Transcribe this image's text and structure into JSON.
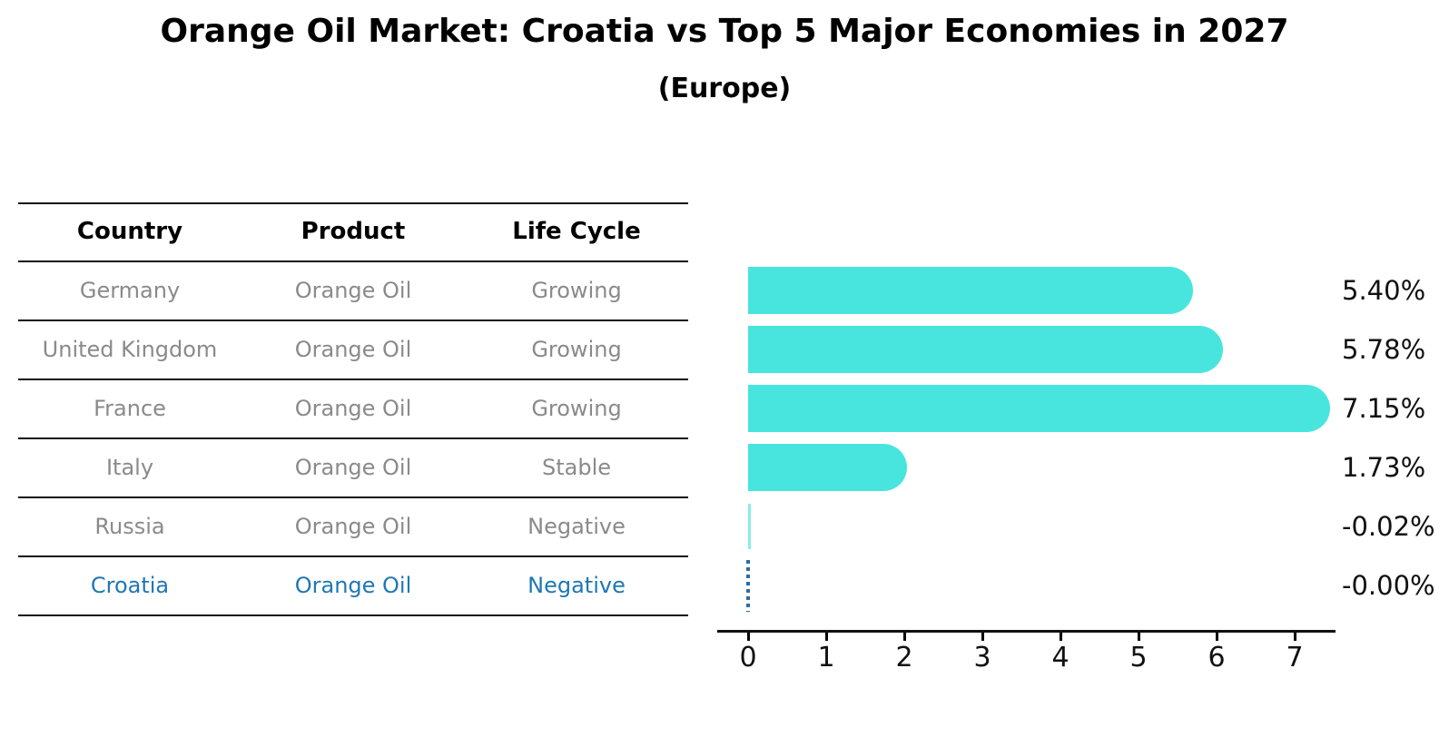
{
  "header": {
    "title": "Orange Oil Market: Croatia vs Top 5 Major Economies in 2027",
    "subtitle": "(Europe)"
  },
  "table": {
    "columns": [
      "Country",
      "Product",
      "Life Cycle"
    ],
    "rows": [
      {
        "country": "Germany",
        "product": "Orange Oil",
        "life_cycle": "Growing",
        "highlight": false
      },
      {
        "country": "United Kingdom",
        "product": "Orange Oil",
        "life_cycle": "Growing",
        "highlight": false
      },
      {
        "country": "France",
        "product": "Orange Oil",
        "life_cycle": "Growing",
        "highlight": false
      },
      {
        "country": "Italy",
        "product": "Orange Oil",
        "life_cycle": "Stable",
        "highlight": false
      },
      {
        "country": "Russia",
        "product": "Orange Oil",
        "life_cycle": "Negative",
        "highlight": false
      },
      {
        "country": "Croatia",
        "product": "Orange Oil",
        "life_cycle": "Negative",
        "highlight": true
      }
    ]
  },
  "chart_data": {
    "type": "bar",
    "orientation": "horizontal",
    "title": "Orange Oil Market: Croatia vs Top 5 Major Economies in 2027 (Europe)",
    "categories": [
      "Germany",
      "United Kingdom",
      "France",
      "Italy",
      "Russia",
      "Croatia"
    ],
    "values": [
      5.4,
      5.78,
      7.15,
      1.73,
      -0.02,
      -0.0
    ],
    "value_labels": [
      "5.40%",
      "5.78%",
      "7.15%",
      "1.73%",
      "-0.02%",
      "-0.00%"
    ],
    "x_ticks": [
      0,
      1,
      2,
      3,
      4,
      5,
      6,
      7
    ],
    "xlim": [
      0,
      7.5
    ],
    "xlabel": "",
    "ylabel": "",
    "grid": false,
    "legend": false,
    "highlight_index": 5
  },
  "colors": {
    "bar": "#48e5de",
    "zero_sliver": "rgba(72,229,222,0.65)",
    "highlight_text": "#1f77b4",
    "highlight_dash": "#2e6da4",
    "table_text": "#8a8a8a",
    "axis": "#111111"
  }
}
